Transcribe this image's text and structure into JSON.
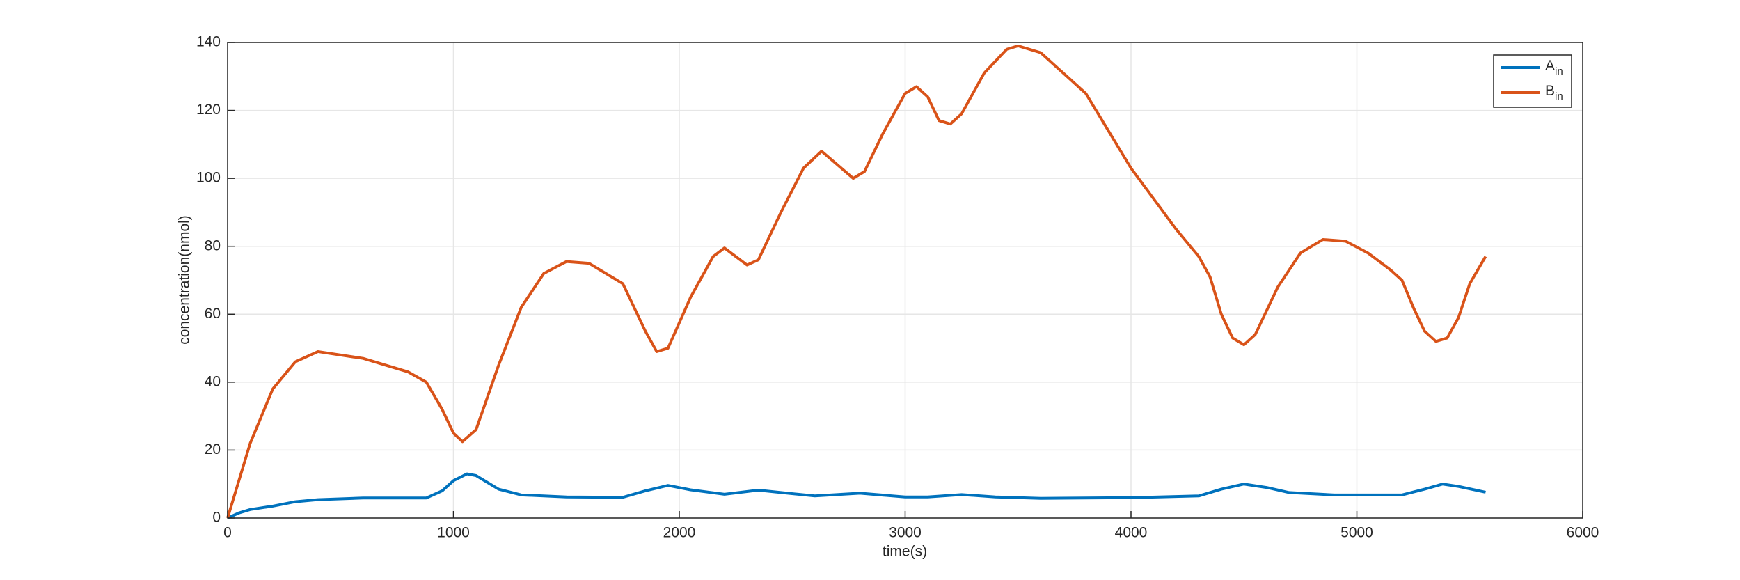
{
  "chart_data": {
    "type": "line",
    "x_label": "time(s)",
    "y_label": "concentration(nmol)",
    "xlim": [
      0,
      6000
    ],
    "xticks": [
      0,
      1000,
      2000,
      3000,
      4000,
      5000,
      6000
    ],
    "ylim": [
      0,
      140
    ],
    "yticks": [
      0,
      20,
      40,
      60,
      80,
      100,
      120,
      140
    ],
    "grid": true,
    "legend": "upper right",
    "series": [
      {
        "name": "A",
        "name_subscript": "in",
        "color": "#0072BD",
        "x": [
          0,
          50,
          100,
          200,
          300,
          400,
          600,
          880,
          950,
          1000,
          1060,
          1100,
          1200,
          1300,
          1500,
          1750,
          1850,
          1950,
          2050,
          2200,
          2350,
          2450,
          2600,
          2800,
          3000,
          3100,
          3250,
          3400,
          3600,
          4000,
          4300,
          4400,
          4500,
          4600,
          4700,
          4900,
          5200,
          5300,
          5380,
          5450,
          5570
        ],
        "values": [
          0,
          1.5,
          2.5,
          3.5,
          4.8,
          5.4,
          5.9,
          5.9,
          8,
          11,
          13,
          12.5,
          8.5,
          6.8,
          6.2,
          6.1,
          8,
          9.6,
          8.3,
          7,
          8.2,
          7.5,
          6.5,
          7.3,
          6.2,
          6.2,
          6.9,
          6.2,
          5.8,
          6,
          6.5,
          8.5,
          10,
          9,
          7.5,
          6.8,
          6.8,
          8.5,
          10,
          9.3,
          7.6
        ]
      },
      {
        "name": "B",
        "name_subscript": "in",
        "color": "#D95319",
        "x": [
          0,
          100,
          200,
          300,
          400,
          600,
          800,
          880,
          950,
          1000,
          1040,
          1100,
          1200,
          1300,
          1400,
          1500,
          1600,
          1750,
          1850,
          1900,
          1950,
          2050,
          2150,
          2200,
          2250,
          2300,
          2350,
          2450,
          2550,
          2630,
          2700,
          2770,
          2820,
          2900,
          3000,
          3050,
          3100,
          3150,
          3200,
          3250,
          3350,
          3450,
          3500,
          3600,
          3800,
          4000,
          4200,
          4300,
          4350,
          4400,
          4450,
          4500,
          4550,
          4650,
          4750,
          4850,
          4950,
          5050,
          5150,
          5200,
          5250,
          5300,
          5350,
          5400,
          5450,
          5500,
          5570
        ],
        "values": [
          0,
          22,
          38,
          46,
          49,
          47,
          43,
          40,
          32,
          25,
          22.5,
          26,
          45,
          62,
          72,
          75.5,
          75,
          69,
          55,
          49,
          50,
          65,
          77,
          79.5,
          77,
          74.5,
          76,
          90,
          103,
          108,
          104,
          100,
          102,
          113,
          125,
          127,
          124,
          117,
          116,
          119,
          131,
          138,
          139,
          137,
          125,
          103,
          85,
          77,
          71,
          60,
          53,
          51,
          54,
          68,
          78,
          82,
          81.5,
          78,
          73,
          70,
          62,
          55,
          52,
          53,
          59,
          69,
          77
        ]
      }
    ]
  }
}
